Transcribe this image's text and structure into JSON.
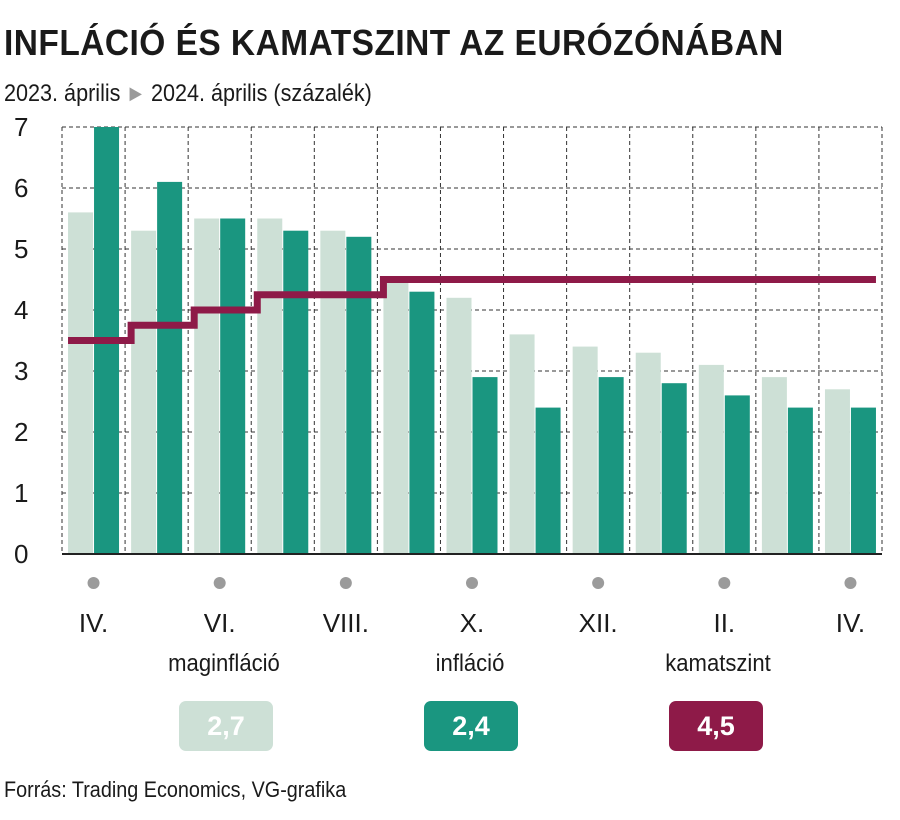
{
  "chart_data": {
    "type": "bar",
    "title": "INFLÁCIÓ ÉS KAMATSZINT AZ EURÓZÓNÁBAN",
    "subtitle": {
      "from": "2023. április",
      "to": "2024. április (százalék)"
    },
    "categories": [
      "2023-04",
      "2023-05",
      "2023-06",
      "2023-07",
      "2023-08",
      "2023-09",
      "2023-10",
      "2023-11",
      "2023-12",
      "2024-01",
      "2024-02",
      "2024-03",
      "2024-04"
    ],
    "x_tick_labels": [
      "IV.",
      "",
      "VI.",
      "",
      "VIII.",
      "",
      "X.",
      "",
      "XII.",
      "",
      "II.",
      "",
      "IV."
    ],
    "ylim": [
      0,
      7
    ],
    "yticks": [
      0,
      1,
      2,
      3,
      4,
      5,
      6,
      7
    ],
    "grid": true,
    "series": [
      {
        "name": "maginfláció",
        "type": "bar",
        "color": "#cde0d6",
        "values": [
          5.6,
          5.3,
          5.5,
          5.5,
          5.3,
          4.5,
          4.2,
          3.6,
          3.4,
          3.3,
          3.1,
          2.9,
          2.7
        ]
      },
      {
        "name": "infláció",
        "type": "bar",
        "color": "#1a9680",
        "values": [
          7.0,
          6.1,
          5.5,
          5.3,
          5.2,
          4.3,
          2.9,
          2.4,
          2.9,
          2.8,
          2.6,
          2.4,
          2.4
        ]
      },
      {
        "name": "kamatszint",
        "type": "step-line",
        "color": "#8e1a48",
        "values": [
          3.5,
          3.75,
          4.0,
          4.25,
          4.25,
          4.5,
          4.5,
          4.5,
          4.5,
          4.5,
          4.5,
          4.5,
          4.5
        ]
      }
    ],
    "legend": [
      {
        "label": "maginfláció",
        "value": "2,7",
        "color": "#cde0d6"
      },
      {
        "label": "infláció",
        "value": "2,4",
        "color": "#1a9680"
      },
      {
        "label": "kamatszint",
        "value": "4,5",
        "color": "#8e1a48"
      }
    ]
  },
  "source": "Forrás: Trading Economics, VG-grafika"
}
